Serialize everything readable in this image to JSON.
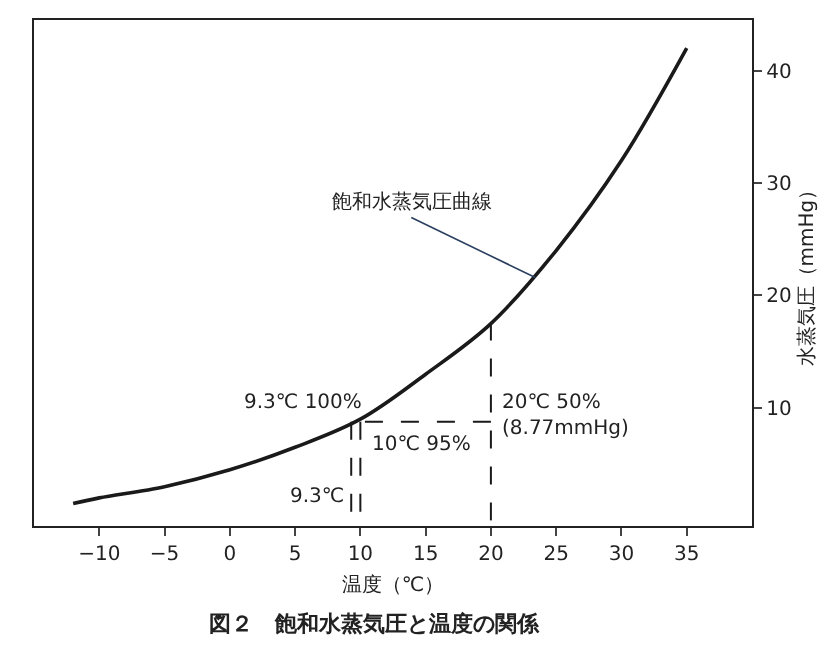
{
  "chart_data": {
    "type": "line",
    "title": "図２　飽和水蒸気圧と温度の関係",
    "xlabel": "温度（℃）",
    "ylabel": "水蒸気圧（mmHg）",
    "xlim": [
      -15,
      40
    ],
    "xticks": [
      {
        "value": -10,
        "label": "−10"
      },
      {
        "value": -5,
        "label": "−5"
      },
      0,
      5,
      10,
      15,
      20,
      25,
      30,
      35
    ],
    "ylim": [
      -0.5,
      44.5
    ],
    "yticks": [
      10,
      20,
      30,
      40
    ],
    "marker": "none",
    "series": [
      {
        "color": "#1a1a1a",
        "line_style": "solid",
        "x": [
          -12,
          -10,
          -5,
          0,
          5,
          10,
          15,
          20,
          25,
          30,
          35
        ],
        "values": [
          1.5,
          2,
          3,
          4.5,
          6.5,
          9,
          13,
          17.5,
          24,
          32,
          42
        ]
      },
      {
        "color": "#1a1a1a",
        "line_style": "dashed",
        "x": [
          20,
          20
        ],
        "values": [
          0,
          17.5
        ]
      },
      {
        "color": "#1a1a1a",
        "line_style": "dashed",
        "x": [
          20,
          10
        ],
        "values": [
          8.77,
          8.77
        ]
      },
      {
        "color": "#1a1a1a",
        "line_style": "dashed",
        "x": [
          10,
          10
        ],
        "values": [
          8.77,
          0
        ]
      },
      {
        "color": "#1a1a1a",
        "line_style": "dashed",
        "x": [
          9.3,
          9.3
        ],
        "values": [
          8.77,
          0
        ]
      }
    ],
    "annotations": [
      {
        "text": "飽和水蒸気圧曲線",
        "x": 23.4,
        "y": 21.6
      },
      {
        "text": "9.3℃ 100%",
        "x": 9.3,
        "y": 8.77
      },
      {
        "text": "10℃ 95%",
        "x": 10,
        "y": 8.77
      },
      {
        "text": "20℃ 50%\n(8.77mmHg)",
        "x": 20,
        "y": 8.77
      },
      {
        "text": "9.3℃",
        "x": 9.3,
        "y": 0
      }
    ]
  }
}
